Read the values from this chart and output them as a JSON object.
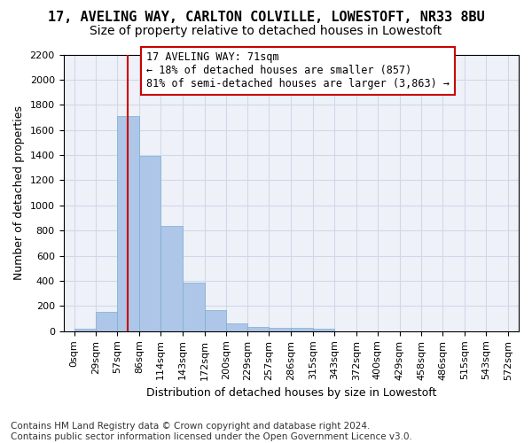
{
  "title_line1": "17, AVELING WAY, CARLTON COLVILLE, LOWESTOFT, NR33 8BU",
  "title_line2": "Size of property relative to detached houses in Lowestoft",
  "xlabel": "Distribution of detached houses by size in Lowestoft",
  "ylabel": "Number of detached properties",
  "bar_values": [
    20,
    155,
    1710,
    1390,
    835,
    385,
    165,
    65,
    35,
    30,
    30,
    20,
    0,
    0,
    0,
    0,
    0,
    0,
    0,
    0
  ],
  "bar_left_edges": [
    0,
    29,
    57,
    86,
    114,
    143,
    172,
    200,
    229,
    257,
    286,
    315,
    343,
    372,
    400,
    429,
    458,
    486,
    515,
    543
  ],
  "bar_labels": [
    "0sqm",
    "29sqm",
    "57sqm",
    "86sqm",
    "114sqm",
    "143sqm",
    "172sqm",
    "200sqm",
    "229sqm",
    "257sqm",
    "286sqm",
    "315sqm",
    "343sqm",
    "372sqm",
    "400sqm",
    "429sqm",
    "458sqm",
    "486sqm",
    "515sqm",
    "543sqm",
    "572sqm"
  ],
  "bar_color": "#aec6e8",
  "bar_edge_color": "#7aaed0",
  "grid_color": "#d0d8e8",
  "background_color": "#eef2f8",
  "property_sqm": 71,
  "vline_color": "#cc0000",
  "annotation_text": "17 AVELING WAY: 71sqm\n← 18% of detached houses are smaller (857)\n81% of semi-detached houses are larger (3,863) →",
  "annotation_box_color": "#cc0000",
  "ylim": [
    0,
    2200
  ],
  "yticks": [
    0,
    200,
    400,
    600,
    800,
    1000,
    1200,
    1400,
    1600,
    1800,
    2000,
    2200
  ],
  "footnote": "Contains HM Land Registry data © Crown copyright and database right 2024.\nContains public sector information licensed under the Open Government Licence v3.0.",
  "title_fontsize": 11,
  "subtitle_fontsize": 10,
  "axis_label_fontsize": 9,
  "tick_fontsize": 8,
  "annotation_fontsize": 8.5,
  "footnote_fontsize": 7.5
}
